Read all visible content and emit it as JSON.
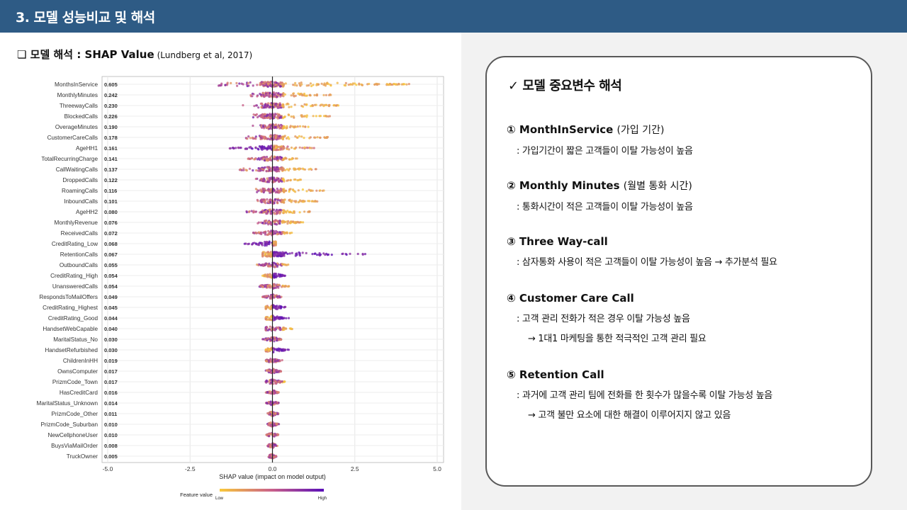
{
  "header": {
    "title": "3. 모델 성능비교 및 해석"
  },
  "section": {
    "title": "❏ 모델 해석 : SHAP Value",
    "subtitle": "(Lundberg et al, 2017)"
  },
  "card": {
    "title": "✓ 모델 중요변수 해석",
    "items": [
      {
        "head": "① MonthInService",
        "paren": "(가입 기간)",
        "lines": [
          ": 가입기간이 짧은 고객들이 이탈 가능성이 높음"
        ]
      },
      {
        "head": "② Monthly Minutes",
        "paren": "(월별 통화 시간)",
        "lines": [
          ": 통화시간이 적은 고객들이 이탈 가능성이 높음"
        ]
      },
      {
        "head": "③ Three Way-call",
        "paren": "",
        "lines": [
          ": 삼자통화 사용이 적은 고객들이 이탈 가능성이 높음 → 추가분석 필요"
        ]
      },
      {
        "head": "④ Customer Care Call",
        "paren": "",
        "lines": [
          ": 고객 관리 전화가 적은 경우 이탈 가능성 높음",
          "→ 1대1 마케팅을 통한 적극적인 고객 관리 필요"
        ]
      },
      {
        "head": "⑤ Retention Call",
        "paren": "",
        "lines": [
          ": 과거에 고객 관리 팀에 전화를 한 횟수가 많을수록 이탈 가능성 높음",
          "→ 고객 불만 요소에 대한 해결이 이루어지지 않고 있음"
        ]
      }
    ]
  },
  "chart_data": {
    "type": "scatter",
    "xlabel": "SHAP value (impact on model output)",
    "xlim": [
      -5.0,
      5.0
    ],
    "xticks": [
      "-5.0",
      "-2.5",
      "0.0",
      "2.5",
      "5.0"
    ],
    "legend": {
      "label": "Feature value",
      "low": "Low",
      "high": "High"
    },
    "colors": {
      "low": "#f9c93a",
      "mid": "#c9608a",
      "high": "#5a0fb8"
    },
    "features": [
      {
        "name": "MonthsInService",
        "importance": "0.605",
        "min": -1.7,
        "max": 4.3
      },
      {
        "name": "MonthlyMinutes",
        "importance": "0.242",
        "min": -0.7,
        "max": 1.8
      },
      {
        "name": "ThreewayCalls",
        "importance": "0.230",
        "min": -0.9,
        "max": 2.2
      },
      {
        "name": "BlockedCalls",
        "importance": "0.226",
        "min": -0.7,
        "max": 1.8
      },
      {
        "name": "OverageMinutes",
        "importance": "0.190",
        "min": -0.6,
        "max": 1.1
      },
      {
        "name": "CustomerCareCalls",
        "importance": "0.178",
        "min": -0.8,
        "max": 1.7
      },
      {
        "name": "AgeHH1",
        "importance": "0.161",
        "min": -1.3,
        "max": 1.3
      },
      {
        "name": "TotalRecurringCharge",
        "importance": "0.141",
        "min": -0.8,
        "max": 0.8
      },
      {
        "name": "CallWaitingCalls",
        "importance": "0.137",
        "min": -1.0,
        "max": 1.5
      },
      {
        "name": "DroppedCalls",
        "importance": "0.122",
        "min": -0.5,
        "max": 0.9
      },
      {
        "name": "RoamingCalls",
        "importance": "0.116",
        "min": -0.5,
        "max": 1.6
      },
      {
        "name": "InboundCalls",
        "importance": "0.101",
        "min": -0.5,
        "max": 1.4
      },
      {
        "name": "AgeHH2",
        "importance": "0.080",
        "min": -0.8,
        "max": 1.2
      },
      {
        "name": "MonthlyRevenue",
        "importance": "0.076",
        "min": -0.5,
        "max": 1.0
      },
      {
        "name": "ReceivedCalls",
        "importance": "0.072",
        "min": -0.6,
        "max": 0.6
      },
      {
        "name": "CreditRating_Low",
        "importance": "0.068",
        "min": -0.9,
        "max": 0.1
      },
      {
        "name": "RetentionCalls",
        "importance": "0.067",
        "min": -0.3,
        "max": 2.9
      },
      {
        "name": "OutboundCalls",
        "importance": "0.055",
        "min": -0.5,
        "max": 0.5
      },
      {
        "name": "CreditRating_High",
        "importance": "0.054",
        "min": -0.3,
        "max": 0.4
      },
      {
        "name": "UnansweredCalls",
        "importance": "0.054",
        "min": -0.4,
        "max": 0.5
      },
      {
        "name": "RespondsToMailOffers",
        "importance": "0.049",
        "min": -0.3,
        "max": 0.3
      },
      {
        "name": "CreditRating_Highest",
        "importance": "0.045",
        "min": -0.2,
        "max": 0.5
      },
      {
        "name": "CreditRating_Good",
        "importance": "0.044",
        "min": -0.2,
        "max": 0.5
      },
      {
        "name": "HandsetWebCapable",
        "importance": "0.040",
        "min": -0.2,
        "max": 0.6
      },
      {
        "name": "MaritalStatus_No",
        "importance": "0.030",
        "min": -0.3,
        "max": 0.3
      },
      {
        "name": "HandsetRefurbished",
        "importance": "0.030",
        "min": -0.2,
        "max": 0.5
      },
      {
        "name": "ChildrenInHH",
        "importance": "0.019",
        "min": -0.2,
        "max": 0.3
      },
      {
        "name": "OwnsComputer",
        "importance": "0.017",
        "min": -0.2,
        "max": 0.3
      },
      {
        "name": "PrizmCode_Town",
        "importance": "0.017",
        "min": -0.2,
        "max": 0.4
      },
      {
        "name": "HasCreditCard",
        "importance": "0.016",
        "min": -0.2,
        "max": 0.2
      },
      {
        "name": "MaritalStatus_Unknown",
        "importance": "0.014",
        "min": -0.2,
        "max": 0.2
      },
      {
        "name": "PrizmCode_Other",
        "importance": "0.011",
        "min": -0.15,
        "max": 0.2
      },
      {
        "name": "PrizmCode_Suburban",
        "importance": "0.010",
        "min": -0.15,
        "max": 0.2
      },
      {
        "name": "NewCellphoneUser",
        "importance": "0.010",
        "min": -0.2,
        "max": 0.2
      },
      {
        "name": "BuysViaMailOrder",
        "importance": "0.008",
        "min": -0.15,
        "max": 0.15
      },
      {
        "name": "TruckOwner",
        "importance": "0.005",
        "min": -0.12,
        "max": 0.12
      }
    ]
  }
}
